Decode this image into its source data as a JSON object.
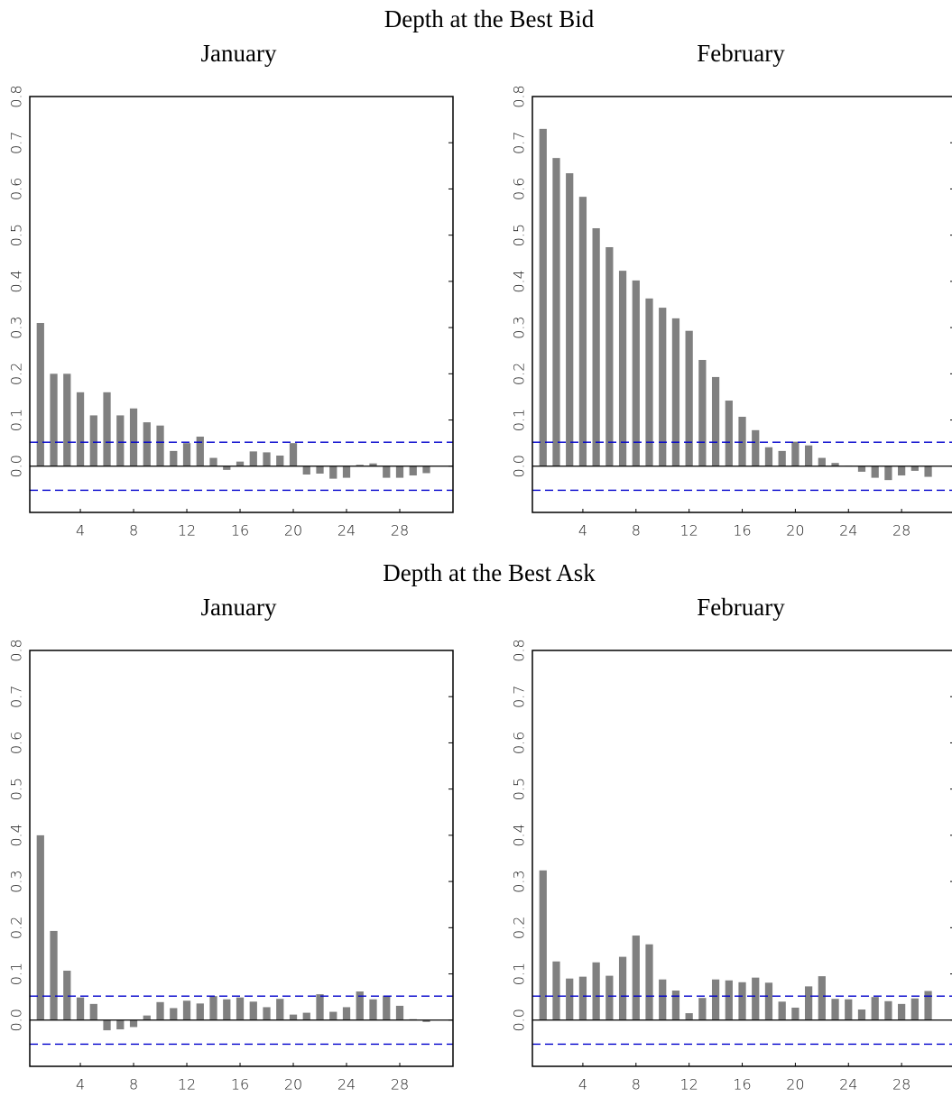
{
  "sections": [
    {
      "title": "Depth at the Best Bid"
    },
    {
      "title": "Depth at the Best Ask"
    }
  ],
  "chart_data": [
    {
      "type": "bar",
      "title": "January",
      "x": [
        1,
        2,
        3,
        4,
        5,
        6,
        7,
        8,
        9,
        10,
        11,
        12,
        13,
        14,
        15,
        16,
        17,
        18,
        19,
        20,
        21,
        22,
        23,
        24,
        25,
        26,
        27,
        28,
        29,
        30
      ],
      "values": [
        0.31,
        0.2,
        0.2,
        0.16,
        0.11,
        0.16,
        0.11,
        0.125,
        0.095,
        0.088,
        0.033,
        0.05,
        0.064,
        0.018,
        -0.008,
        0.01,
        0.032,
        0.03,
        0.023,
        0.05,
        -0.018,
        -0.016,
        -0.027,
        -0.025,
        0.003,
        0.006,
        -0.025,
        -0.025,
        -0.02,
        -0.015
      ],
      "color": "#808080",
      "xlim": [
        0.2,
        32
      ],
      "ylim": [
        -0.1,
        0.8
      ],
      "xticks": [
        4,
        8,
        12,
        16,
        20,
        24,
        28
      ],
      "yticks": [
        {
          "value": 0,
          "label": "0.0"
        },
        0.1,
        0.2,
        0.3,
        0.4,
        0.5,
        0.6,
        0.7,
        0.8
      ],
      "conf_bounds": [
        0.052,
        -0.052
      ],
      "conf_color": "#0000cc"
    },
    {
      "type": "bar",
      "title": "February",
      "x": [
        1,
        2,
        3,
        4,
        5,
        6,
        7,
        8,
        9,
        10,
        11,
        12,
        13,
        14,
        15,
        16,
        17,
        18,
        19,
        20,
        21,
        22,
        23,
        24,
        25,
        26,
        27,
        28,
        29,
        30
      ],
      "values": [
        0.73,
        0.667,
        0.634,
        0.583,
        0.515,
        0.474,
        0.423,
        0.402,
        0.363,
        0.343,
        0.32,
        0.293,
        0.23,
        0.193,
        0.142,
        0.107,
        0.078,
        0.041,
        0.033,
        0.053,
        0.045,
        0.018,
        0.007,
        0.001,
        -0.012,
        -0.025,
        -0.03,
        -0.02,
        -0.01,
        -0.023
      ],
      "color": "#808080",
      "xlim": [
        0.2,
        32
      ],
      "ylim": [
        -0.1,
        0.8
      ],
      "xticks": [
        4,
        8,
        12,
        16,
        20,
        24,
        28
      ],
      "yticks": [
        {
          "value": 0,
          "label": "0.0"
        },
        0.1,
        0.2,
        0.3,
        0.4,
        0.5,
        0.6,
        0.7,
        0.8
      ],
      "conf_bounds": [
        0.052,
        -0.052
      ],
      "conf_color": "#0000cc"
    },
    {
      "type": "bar",
      "title": "January",
      "x": [
        1,
        2,
        3,
        4,
        5,
        6,
        7,
        8,
        9,
        10,
        11,
        12,
        13,
        14,
        15,
        16,
        17,
        18,
        19,
        20,
        21,
        22,
        23,
        24,
        25,
        26,
        27,
        28,
        29,
        30
      ],
      "values": [
        0.4,
        0.193,
        0.107,
        0.049,
        0.035,
        -0.022,
        -0.02,
        -0.015,
        0.01,
        0.039,
        0.026,
        0.042,
        0.036,
        0.052,
        0.045,
        0.049,
        0.04,
        0.028,
        0.046,
        0.012,
        0.016,
        0.056,
        0.018,
        0.028,
        0.062,
        0.045,
        0.053,
        0.031,
        0.002,
        -0.004
      ],
      "color": "#808080",
      "xlim": [
        0.2,
        32
      ],
      "ylim": [
        -0.1,
        0.8
      ],
      "xticks": [
        4,
        8,
        12,
        16,
        20,
        24,
        28
      ],
      "yticks": [
        {
          "value": 0,
          "label": "0.0"
        },
        0.1,
        0.2,
        0.3,
        0.4,
        0.5,
        0.6,
        0.7,
        0.8
      ],
      "conf_bounds": [
        0.052,
        -0.052
      ],
      "conf_color": "#0000cc"
    },
    {
      "type": "bar",
      "title": "February",
      "x": [
        1,
        2,
        3,
        4,
        5,
        6,
        7,
        8,
        9,
        10,
        11,
        12,
        13,
        14,
        15,
        16,
        17,
        18,
        19,
        20,
        21,
        22,
        23,
        24,
        25,
        26,
        27,
        28,
        29,
        30
      ],
      "values": [
        0.324,
        0.127,
        0.09,
        0.094,
        0.125,
        0.096,
        0.137,
        0.183,
        0.164,
        0.088,
        0.064,
        0.015,
        0.048,
        0.088,
        0.086,
        0.082,
        0.092,
        0.081,
        0.04,
        0.027,
        0.073,
        0.095,
        0.046,
        0.045,
        0.023,
        0.05,
        0.041,
        0.035,
        0.047,
        0.063
      ],
      "color": "#808080",
      "xlim": [
        0.2,
        32
      ],
      "ylim": [
        -0.1,
        0.8
      ],
      "xticks": [
        4,
        8,
        12,
        16,
        20,
        24,
        28
      ],
      "yticks": [
        {
          "value": 0,
          "label": "0.0"
        },
        0.1,
        0.2,
        0.3,
        0.4,
        0.5,
        0.6,
        0.7,
        0.8
      ],
      "conf_bounds": [
        0.052,
        -0.052
      ],
      "conf_color": "#0000cc"
    }
  ]
}
